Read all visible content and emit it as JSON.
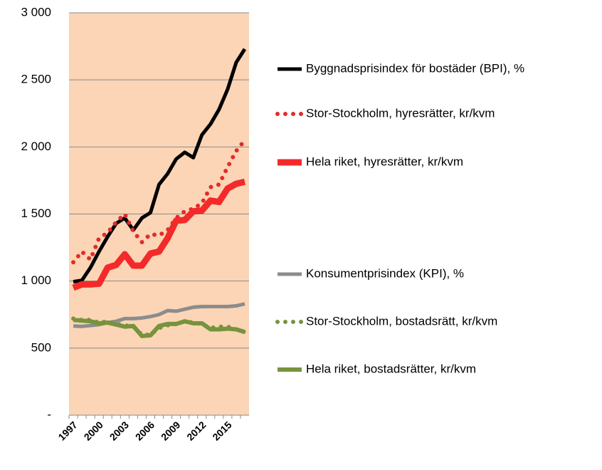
{
  "chart_data": {
    "type": "line",
    "categories": [
      "1997",
      null,
      null,
      "2000",
      null,
      null,
      "2003",
      null,
      null,
      "2006",
      null,
      null,
      "2009",
      null,
      null,
      "2012",
      null,
      null,
      "2015",
      null,
      null
    ],
    "ylim": [
      0,
      3000
    ],
    "yticks": [
      {
        "value": 0,
        "label": "-"
      },
      500,
      {
        "value": 1000,
        "label": "1 000"
      },
      {
        "value": 1500,
        "label": "1 500"
      },
      {
        "value": 2000,
        "label": "2 000"
      },
      {
        "value": 2500,
        "label": "2 500"
      },
      {
        "value": 3000,
        "label": "3 000"
      }
    ],
    "grid": true,
    "plot_color": "#fbd5b5",
    "series": [
      {
        "name": "Byggnadsprisindex för bostäder (BPI), %",
        "color": "#000000",
        "line_style": "solid",
        "line_width": 5,
        "values": [
          995,
          1005,
          1100,
          1220,
          1330,
          1430,
          1470,
          1380,
          1470,
          1510,
          1720,
          1800,
          1910,
          1960,
          1920,
          2090,
          2170,
          2280,
          2430,
          2630,
          2730
        ]
      },
      {
        "name": "Stor-Stockholm, hyresrätter, kr/kvm",
        "color": "#e42a2a",
        "line_style": "dotted",
        "line_width": 6,
        "values": [
          1140,
          1220,
          1160,
          1320,
          1360,
          1440,
          1500,
          1370,
          1290,
          1350,
          1340,
          1380,
          1470,
          1520,
          1540,
          1580,
          1700,
          1720,
          1850,
          1970,
          2050
        ]
      },
      {
        "name": "Hela riket, hyresrätter, kr/kvm",
        "color": "#f42a2a",
        "line_style": "solid",
        "line_width": 9,
        "values": [
          950,
          975,
          975,
          980,
          1100,
          1120,
          1200,
          1115,
          1115,
          1205,
          1220,
          1320,
          1450,
          1455,
          1520,
          1525,
          1600,
          1590,
          1690,
          1725,
          1740
        ]
      },
      {
        "name": "Konsumentprisindex (KPI), %",
        "color": "#8c8c8c",
        "line_style": "solid",
        "line_width": 5,
        "values": [
          665,
          662,
          668,
          675,
          690,
          700,
          720,
          720,
          725,
          735,
          750,
          780,
          775,
          790,
          805,
          810,
          810,
          810,
          810,
          815,
          830
        ]
      },
      {
        "name": "Stor-Stockholm, bostadsrätt, kr/kvm",
        "color": "#77933c",
        "line_style": "dotted",
        "line_width": 6,
        "values": [
          720,
          710,
          710,
          690,
          700,
          680,
          670,
          660,
          600,
          600,
          650,
          670,
          680,
          700,
          690,
          680,
          650,
          660,
          660,
          640,
          620
        ]
      },
      {
        "name": "Hela riket, bostadsrätter, kr/kvm",
        "color": "#77933c",
        "line_style": "solid",
        "line_width": 6,
        "values": [
          710,
          705,
          700,
          685,
          690,
          675,
          660,
          665,
          590,
          595,
          665,
          680,
          680,
          700,
          685,
          685,
          640,
          640,
          645,
          640,
          620
        ]
      }
    ]
  }
}
